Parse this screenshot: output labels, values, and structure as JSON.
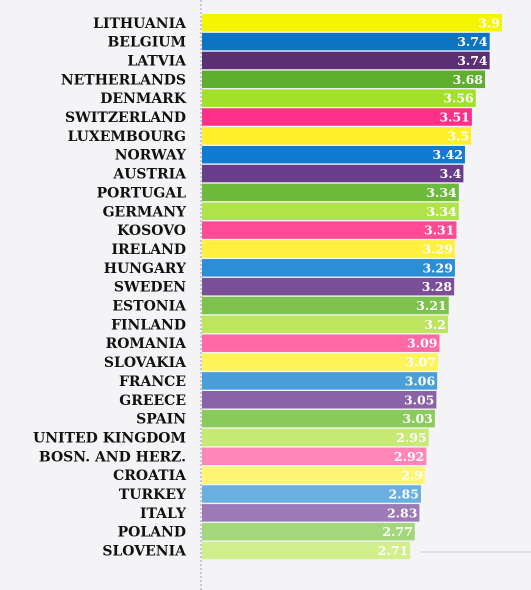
{
  "chart_data": {
    "type": "bar",
    "orientation": "horizontal",
    "categories": [
      "LITHUANIA",
      "BELGIUM",
      "LATVIA",
      "NETHERLANDS",
      "DENMARK",
      "SWITZERLAND",
      "LUXEMBOURG",
      "NORWAY",
      "AUSTRIA",
      "PORTUGAL",
      "GERMANY",
      "KOSOVO",
      "IRELAND",
      "HUNGARY",
      "SWEDEN",
      "ESTONIA",
      "FINLAND",
      "ROMANIA",
      "SLOVAKIA",
      "FRANCE",
      "GREECE",
      "SPAIN",
      "UNITED KINGDOM",
      "BOSN. AND HERZ.",
      "CROATIA",
      "TURKEY",
      "ITALY",
      "POLAND",
      "SLOVENIA"
    ],
    "values": [
      3.9,
      3.74,
      3.74,
      3.68,
      3.56,
      3.51,
      3.5,
      3.42,
      3.4,
      3.34,
      3.34,
      3.31,
      3.29,
      3.29,
      3.28,
      3.21,
      3.2,
      3.09,
      3.07,
      3.06,
      3.05,
      3.03,
      2.95,
      2.92,
      2.9,
      2.85,
      2.83,
      2.77,
      2.71
    ],
    "value_labels": [
      "3.9",
      "3.74",
      "3.74",
      "3.68",
      "3.56",
      "3.51",
      "3.5",
      "3.42",
      "3.4",
      "3.34",
      "3.34",
      "3.31",
      "3.29",
      "3.29",
      "3.28",
      "3.21",
      "3.2",
      "3.09",
      "3.07",
      "3.06",
      "3.05",
      "3.03",
      "2.95",
      "2.92",
      "2.9",
      "2.85",
      "2.83",
      "2.77",
      "2.71"
    ],
    "colors": [
      "#f5f500",
      "#0d74c2",
      "#5b2f73",
      "#5fae2e",
      "#a3e02a",
      "#ff2f8c",
      "#ffee2a",
      "#0f7cd1",
      "#6a3d8a",
      "#6db93c",
      "#b0e34a",
      "#ff4a96",
      "#fff03f",
      "#2a8fd7",
      "#7a4f98",
      "#7cc24d",
      "#bde65e",
      "#ff6aa6",
      "#fff35a",
      "#4a9fdb",
      "#8a62a8",
      "#8bcb5c",
      "#c6ea73",
      "#ff86b6",
      "#fff574",
      "#69b0e1",
      "#9c7ab5",
      "#a2d77b",
      "#d1ef8d"
    ],
    "xlim": [
      0,
      3.9
    ],
    "grid": false,
    "legend": "none"
  }
}
